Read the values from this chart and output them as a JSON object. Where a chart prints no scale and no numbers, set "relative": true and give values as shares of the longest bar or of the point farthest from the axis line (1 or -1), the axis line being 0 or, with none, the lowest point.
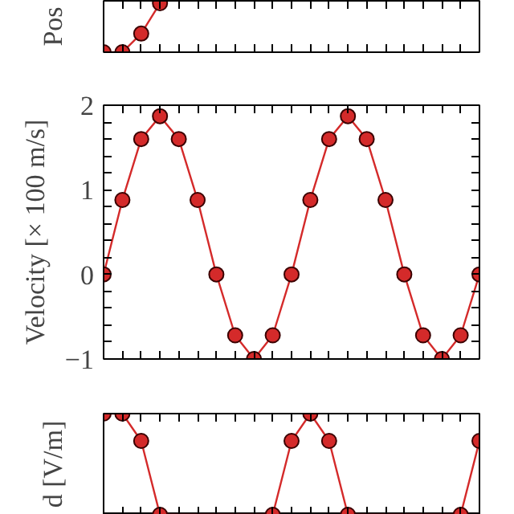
{
  "chart_data": [
    {
      "type": "line",
      "ylabel": "Pos",
      "relative": true,
      "categories": [
        null,
        null,
        null,
        null,
        null,
        null,
        null,
        null,
        null,
        null,
        null,
        null,
        null,
        null,
        null,
        null,
        null,
        null,
        null,
        null,
        null
      ],
      "values": [
        0,
        0,
        0.38,
        1,
        null,
        null,
        null,
        null,
        null,
        null,
        null,
        null,
        null,
        null,
        null,
        null,
        null,
        null,
        null,
        null,
        null
      ],
      "color": "#d42a2a",
      "marker": "circle",
      "annotations": [
        "0"
      ]
    },
    {
      "type": "line",
      "ylabel": "Velocity [× 100 m/s]",
      "categories": [
        null,
        null,
        null,
        null,
        null,
        null,
        null,
        null,
        null,
        null,
        null,
        null,
        null,
        null,
        null,
        null,
        null,
        null,
        null,
        null,
        null
      ],
      "values": [
        0,
        0.88,
        1.6,
        1.87,
        1.6,
        0.88,
        0,
        -0.72,
        -1,
        -0.72,
        0,
        0.88,
        1.6,
        1.87,
        1.6,
        0.88,
        0,
        -0.72,
        -1,
        -0.72,
        0
      ],
      "color": "#d42a2a",
      "marker": "circle",
      "ylim": [
        -1,
        2
      ],
      "yticks": [
        {
          "value": -1,
          "label": "−1"
        },
        {
          "value": -0.8,
          "label": null
        },
        {
          "value": -0.6,
          "label": null
        },
        {
          "value": -0.4,
          "label": null
        },
        {
          "value": -0.2,
          "label": null
        },
        0,
        {
          "value": 0.2,
          "label": null
        },
        {
          "value": 0.4,
          "label": null
        },
        {
          "value": 0.6,
          "label": null
        },
        {
          "value": 0.8,
          "label": null
        },
        1,
        {
          "value": 1.2,
          "label": null
        },
        {
          "value": 1.4,
          "label": null
        },
        {
          "value": 1.6,
          "label": null
        },
        {
          "value": 1.8,
          "label": null
        },
        2
      ],
      "tick_labels": "y"
    },
    {
      "type": "line",
      "ylabel": "d [V/m]",
      "relative": true,
      "categories": [
        null,
        null,
        null,
        null,
        null,
        null,
        null,
        null,
        null,
        null,
        null,
        null,
        null,
        null,
        null,
        null,
        null,
        null,
        null,
        null,
        null
      ],
      "values": [
        1,
        1,
        0.73,
        0,
        null,
        null,
        null,
        null,
        null,
        0,
        0.73,
        1,
        0.73,
        0,
        null,
        null,
        null,
        null,
        null,
        0,
        0.73
      ],
      "color": "#d42a2a",
      "marker": "circle",
      "annotations": [
        "1"
      ]
    }
  ]
}
